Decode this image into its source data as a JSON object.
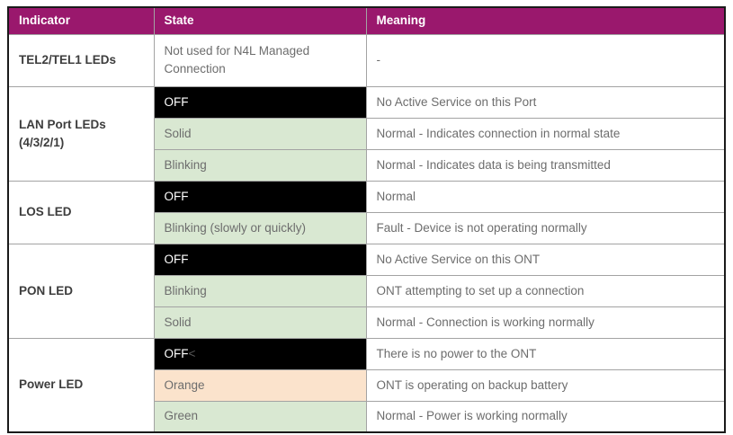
{
  "colors": {
    "header_bg": "#9a186d",
    "header_text": "#ffffff",
    "state_off_bg": "#000000",
    "state_off_text": "#ffffff",
    "state_off_suffix": "#5a5a5a",
    "state_green_bg": "#d9e8d2",
    "state_orange_bg": "#fbe3cc",
    "body_text": "#6d6d6d",
    "indicator_text": "#3d3d3d",
    "border_outer": "#1a1a1a",
    "border_inner": "#a3a3a3",
    "page_bg": "#ffffff"
  },
  "table": {
    "headers": [
      "Indicator",
      "State",
      "Meaning"
    ],
    "groups": [
      {
        "indicator": "TEL2/TEL1 LEDs",
        "rows": [
          {
            "state": "Not used for N4L Managed Connection",
            "state_style": "plain",
            "meaning": "-"
          }
        ]
      },
      {
        "indicator": "LAN Port LEDs (4/3/2/1)",
        "rows": [
          {
            "state": "OFF",
            "state_style": "off",
            "meaning": "No Active Service on this Port"
          },
          {
            "state": "Solid",
            "state_style": "green",
            "meaning": "Normal - Indicates connection in normal state"
          },
          {
            "state": "Blinking",
            "state_style": "green",
            "meaning": "Normal - Indicates data is being transmitted"
          }
        ]
      },
      {
        "indicator": "LOS LED",
        "rows": [
          {
            "state": "OFF",
            "state_style": "off",
            "meaning": "Normal"
          },
          {
            "state": "Blinking (slowly or quickly)",
            "state_style": "green",
            "meaning": "Fault - Device is not operating normally"
          }
        ]
      },
      {
        "indicator": "PON LED",
        "rows": [
          {
            "state": "OFF",
            "state_style": "off",
            "meaning": "No Active Service on this ONT"
          },
          {
            "state": "Blinking",
            "state_style": "green",
            "meaning": "ONT attempting to set up a connection"
          },
          {
            "state": "Solid",
            "state_style": "green",
            "meaning": "Normal - Connection is working normally"
          }
        ]
      },
      {
        "indicator": "Power LED",
        "rows": [
          {
            "state": "OFF",
            "state_suffix": "<",
            "state_style": "off",
            "meaning": "There is no power to the ONT"
          },
          {
            "state": "Orange",
            "state_style": "orange",
            "meaning": "ONT is operating on backup battery"
          },
          {
            "state": "Green",
            "state_style": "green",
            "meaning": "Normal - Power is working normally"
          }
        ]
      }
    ]
  }
}
